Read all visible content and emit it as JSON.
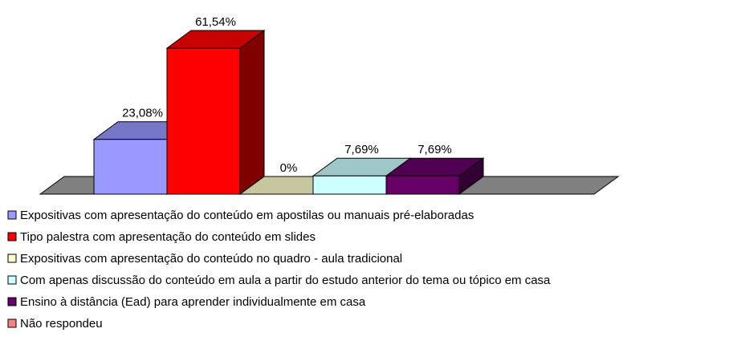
{
  "chart_data": {
    "type": "bar3d",
    "series": [
      {
        "name": "Expositivas com apresentação do conteúdo em apostilas ou manuais pré-elaboradas",
        "color": "#9999ff",
        "values": [
          23.08
        ],
        "value_labels": [
          "23,08%"
        ]
      },
      {
        "name": "Tipo palestra com apresentação do conteúdo em slides",
        "color": "#ff0000",
        "values": [
          61.54
        ],
        "value_labels": [
          "61,54%"
        ]
      },
      {
        "name": "Expositivas com apresentação do conteúdo no quadro - aula tradicional",
        "color": "#ffffcc",
        "values": [
          0
        ],
        "value_labels": [
          "0%"
        ]
      },
      {
        "name": "Com apenas discussão do conteúdo em aula a partir do estudo anterior do tema ou tópico em casa",
        "color": "#ccffff",
        "values": [
          7.69
        ],
        "value_labels": [
          "7,69%"
        ]
      },
      {
        "name": "Ensino à distância (Ead) para aprender individualmente em casa",
        "color": "#660066",
        "values": [
          7.69
        ],
        "value_labels": [
          "7,69%"
        ]
      },
      {
        "name": "Não respondeu",
        "color": "#ff8080",
        "values": [
          null
        ]
      }
    ],
    "legend": "bottom-left"
  }
}
